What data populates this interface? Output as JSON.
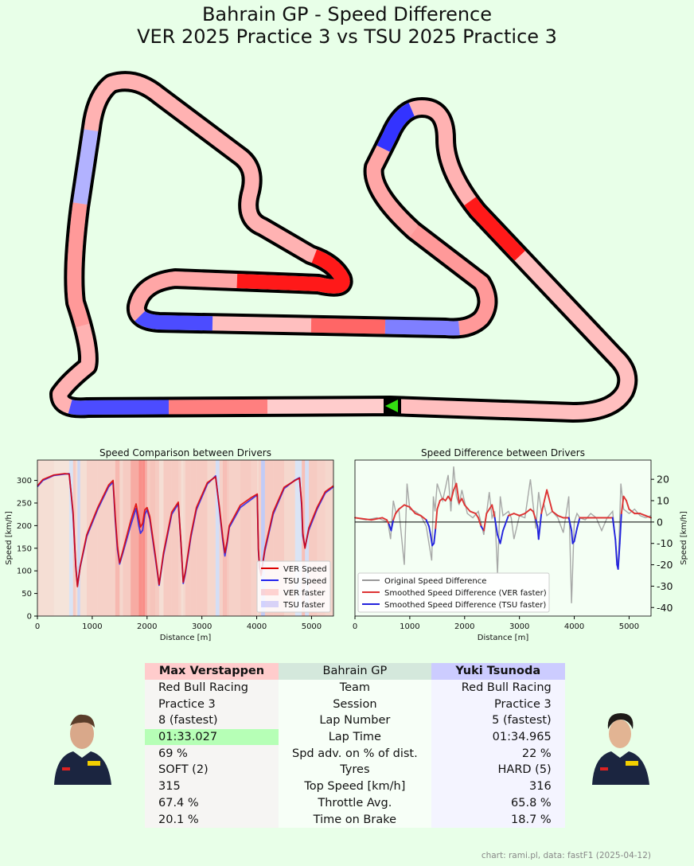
{
  "title_line1": "Bahrain GP - Speed Difference",
  "title_line2": "VER 2025 Practice 3 vs TSU 2025 Practice 3",
  "credit": "chart: rami.pl, data: fastF1 (2025-04-12)",
  "colors": {
    "ver": "#ff0000",
    "tsu": "#0000ff",
    "background": "#e8ffe8",
    "plot_bg": "#f4fff4"
  },
  "chart_data": [
    {
      "type": "map",
      "description_source": "track map colored by speed difference",
      "segments": [
        {
          "from": 0.0,
          "to": 0.17,
          "leader": "VER",
          "strength": 0.25
        },
        {
          "from": 0.17,
          "to": 0.2,
          "leader": "VER",
          "strength": 0.9
        },
        {
          "from": 0.2,
          "to": 0.25,
          "leader": "VER",
          "strength": 0.3
        },
        {
          "from": 0.25,
          "to": 0.27,
          "leader": "TSU",
          "strength": 0.8
        },
        {
          "from": 0.27,
          "to": 0.31,
          "leader": "VER",
          "strength": 0.35
        },
        {
          "from": 0.31,
          "to": 0.37,
          "leader": "VER",
          "strength": 0.4
        },
        {
          "from": 0.37,
          "to": 0.4,
          "leader": "TSU",
          "strength": 0.5
        },
        {
          "from": 0.4,
          "to": 0.43,
          "leader": "VER",
          "strength": 0.6
        },
        {
          "from": 0.43,
          "to": 0.47,
          "leader": "VER",
          "strength": 0.25
        },
        {
          "from": 0.47,
          "to": 0.5,
          "leader": "TSU",
          "strength": 0.7
        },
        {
          "from": 0.5,
          "to": 0.55,
          "leader": "VER",
          "strength": 0.35
        },
        {
          "from": 0.55,
          "to": 0.61,
          "leader": "VER",
          "strength": 0.9
        },
        {
          "from": 0.61,
          "to": 0.65,
          "leader": "VER",
          "strength": 0.3
        },
        {
          "from": 0.65,
          "to": 0.75,
          "leader": "VER",
          "strength": 0.3
        },
        {
          "from": 0.75,
          "to": 0.78,
          "leader": "TSU",
          "strength": 0.3
        },
        {
          "from": 0.78,
          "to": 0.83,
          "leader": "VER",
          "strength": 0.4
        },
        {
          "from": 0.83,
          "to": 0.87,
          "leader": "VER",
          "strength": 0.3
        },
        {
          "from": 0.87,
          "to": 0.91,
          "leader": "TSU",
          "strength": 0.7
        },
        {
          "from": 0.91,
          "to": 0.95,
          "leader": "VER",
          "strength": 0.5
        },
        {
          "from": 0.95,
          "to": 1.0,
          "leader": "VER",
          "strength": 0.2
        }
      ]
    },
    {
      "type": "line",
      "title": "Speed Comparison between Drivers",
      "xlabel": "Distance [m]",
      "ylabel": "Speed [km/h]",
      "xlim": [
        0,
        5400
      ],
      "ylim": [
        0,
        345
      ],
      "xticks": [
        0,
        1000,
        2000,
        3000,
        4000,
        5000
      ],
      "yticks": [
        0,
        50,
        100,
        150,
        200,
        250,
        300
      ],
      "legend_position": "lower-right",
      "legend": [
        "VER Speed",
        "TSU Speed",
        "VER faster",
        "TSU faster"
      ],
      "series": [
        {
          "name": "VER Speed",
          "color": "#dd0000",
          "x": [
            0,
            100,
            300,
            500,
            580,
            650,
            700,
            730,
            780,
            900,
            1100,
            1300,
            1380,
            1420,
            1460,
            1500,
            1560,
            1700,
            1800,
            1850,
            1880,
            1920,
            1960,
            2000,
            2050,
            2150,
            2220,
            2300,
            2450,
            2570,
            2620,
            2660,
            2700,
            2800,
            2900,
            3100,
            3250,
            3320,
            3380,
            3420,
            3460,
            3500,
            3700,
            3900,
            4010,
            4030,
            4050,
            4080,
            4150,
            4300,
            4500,
            4700,
            4780,
            4820,
            4840,
            4880,
            4950,
            5100,
            5250,
            5400
          ],
          "y": [
            288,
            302,
            312,
            315,
            314,
            230,
            110,
            65,
            110,
            180,
            240,
            290,
            300,
            220,
            155,
            118,
            145,
            210,
            248,
            215,
            197,
            205,
            235,
            240,
            220,
            135,
            70,
            140,
            230,
            252,
            160,
            75,
            100,
            180,
            240,
            295,
            308,
            240,
            175,
            140,
            165,
            200,
            245,
            262,
            270,
            150,
            110,
            90,
            150,
            230,
            285,
            300,
            305,
            250,
            185,
            150,
            195,
            240,
            275,
            288
          ]
        },
        {
          "name": "TSU Speed",
          "color": "#2222ee",
          "x": [
            0,
            100,
            300,
            500,
            580,
            650,
            700,
            730,
            780,
            900,
            1100,
            1300,
            1380,
            1420,
            1460,
            1500,
            1560,
            1700,
            1800,
            1850,
            1880,
            1920,
            1960,
            2000,
            2050,
            2150,
            2220,
            2300,
            2450,
            2570,
            2620,
            2660,
            2700,
            2800,
            2900,
            3100,
            3250,
            3320,
            3380,
            3420,
            3460,
            3500,
            3700,
            3900,
            4010,
            4030,
            4050,
            4080,
            4150,
            4300,
            4500,
            4700,
            4780,
            4820,
            4840,
            4880,
            4950,
            5100,
            5250,
            5400
          ],
          "y": [
            286,
            300,
            311,
            314,
            315,
            225,
            108,
            68,
            108,
            176,
            236,
            286,
            296,
            212,
            147,
            115,
            140,
            200,
            238,
            200,
            183,
            190,
            225,
            235,
            214,
            130,
            68,
            135,
            225,
            248,
            158,
            72,
            95,
            175,
            235,
            292,
            310,
            236,
            168,
            133,
            160,
            196,
            240,
            258,
            268,
            146,
            106,
            95,
            145,
            225,
            282,
            301,
            306,
            244,
            178,
            152,
            190,
            236,
            272,
            286
          ]
        }
      ]
    },
    {
      "type": "line",
      "title": "Speed Difference between Drivers",
      "xlabel": "Distance [m]",
      "ylabel": "Speed [km/h]",
      "xlim": [
        0,
        5400
      ],
      "ylim": [
        -44,
        29
      ],
      "xticks": [
        0,
        1000,
        2000,
        3000,
        4000,
        5000
      ],
      "yticks": [
        -40,
        -30,
        -20,
        -10,
        0,
        10,
        20
      ],
      "legend_position": "lower-left",
      "legend": [
        "Original Speed Difference",
        "Smoothed Speed Difference (VER faster)",
        "Smoothed Speed Difference (TSU faster)"
      ],
      "original": {
        "name": "Original Speed Difference",
        "x": [
          0,
          200,
          400,
          600,
          650,
          700,
          750,
          800,
          900,
          950,
          1000,
          1100,
          1200,
          1300,
          1400,
          1430,
          1460,
          1500,
          1600,
          1700,
          1750,
          1800,
          1850,
          1900,
          1950,
          2050,
          2150,
          2250,
          2350,
          2450,
          2500,
          2550,
          2600,
          2650,
          2700,
          2800,
          2850,
          2900,
          3000,
          3100,
          3200,
          3250,
          3300,
          3350,
          3400,
          3450,
          3500,
          3600,
          3700,
          3800,
          3900,
          3950,
          4000,
          4050,
          4100,
          4200,
          4300,
          4400,
          4500,
          4600,
          4700,
          4800,
          4850,
          4900,
          5000,
          5100,
          5200,
          5300,
          5400
        ],
        "y": [
          2,
          1,
          2,
          0,
          -8,
          10,
          4,
          6,
          -20,
          18,
          6,
          5,
          3,
          -2,
          -18,
          12,
          5,
          18,
          10,
          22,
          5,
          26,
          12,
          8,
          15,
          4,
          2,
          5,
          -6,
          14,
          2,
          5,
          -24,
          12,
          3,
          5,
          2,
          -8,
          3,
          2,
          20,
          8,
          -3,
          14,
          5,
          8,
          3,
          5,
          2,
          -5,
          12,
          -38,
          0,
          4,
          2,
          1,
          4,
          2,
          -4,
          2,
          5,
          -22,
          18,
          6,
          4,
          6,
          3,
          2,
          3
        ]
      },
      "smoothed": {
        "x": [
          0,
          300,
          500,
          580,
          620,
          660,
          700,
          740,
          800,
          900,
          1000,
          1100,
          1200,
          1300,
          1350,
          1380,
          1410,
          1440,
          1470,
          1500,
          1550,
          1600,
          1650,
          1700,
          1750,
          1800,
          1850,
          1900,
          1950,
          2000,
          2100,
          2200,
          2250,
          2300,
          2350,
          2400,
          2500,
          2550,
          2600,
          2650,
          2700,
          2800,
          2900,
          3000,
          3100,
          3200,
          3250,
          3300,
          3330,
          3350,
          3400,
          3500,
          3600,
          3700,
          3800,
          3900,
          3950,
          3970,
          4000,
          4050,
          4100,
          4300,
          4500,
          4600,
          4700,
          4750,
          4780,
          4800,
          4830,
          4860,
          4900,
          4950,
          5000,
          5100,
          5200,
          5300,
          5400
        ],
        "y": [
          2,
          1,
          2,
          1,
          -1,
          -4,
          1,
          4,
          6,
          8,
          7,
          4,
          3,
          1,
          -2,
          -6,
          -11,
          -10,
          -3,
          6,
          10,
          11,
          10,
          12,
          10,
          15,
          18,
          9,
          11,
          8,
          5,
          4,
          2,
          -2,
          -4,
          4,
          8,
          2,
          -6,
          -10,
          -4,
          3,
          4,
          3,
          4,
          6,
          5,
          1,
          -2,
          -8,
          4,
          15,
          5,
          3,
          2,
          2,
          -4,
          -10,
          -9,
          -3,
          2,
          2,
          2,
          2,
          2,
          -8,
          -20,
          -22,
          -10,
          4,
          12,
          10,
          6,
          4,
          4,
          3,
          2
        ]
      }
    }
  ],
  "photos": {
    "ver_alt": "Max Verstappen portrait",
    "tsu_alt": "Yuki Tsunoda portrait"
  },
  "table": {
    "driver1": "Max Verstappen",
    "event": "Bahrain GP",
    "driver2": "Yuki Tsunoda",
    "rows": [
      {
        "label": "Team",
        "d1": "Red Bull Racing",
        "d2": "Red Bull Racing"
      },
      {
        "label": "Session",
        "d1": "Practice 3",
        "d2": "Practice 3"
      },
      {
        "label": "Lap Number",
        "d1": "8 (fastest)",
        "d2": "5 (fastest)"
      },
      {
        "label": "Lap Time",
        "d1": "01:33.027",
        "d2": "01:34.965"
      },
      {
        "label": "Spd adv. on % of dist.",
        "d1": "69 %",
        "d2": "22 %"
      },
      {
        "label": "Tyres",
        "d1": "SOFT (2)",
        "d2": "HARD (5)"
      },
      {
        "label": "Top Speed [km/h]",
        "d1": "315",
        "d2": "316"
      },
      {
        "label": "Throttle Avg.",
        "d1": "67.4 %",
        "d2": "65.8 %"
      },
      {
        "label": "Time on Brake",
        "d1": "20.1 %",
        "d2": "18.7 %"
      }
    ]
  }
}
